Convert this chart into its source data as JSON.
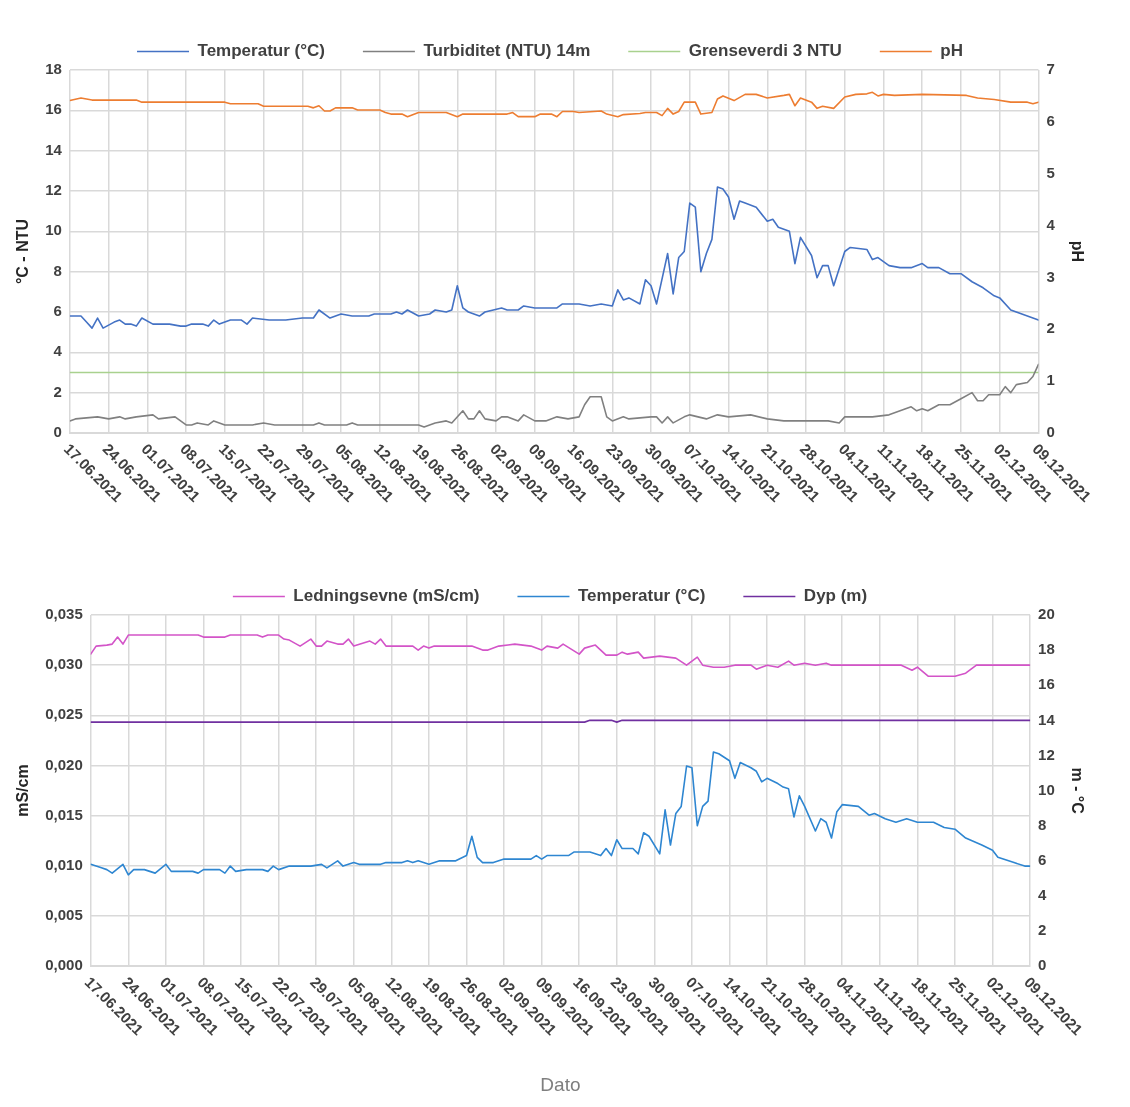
{
  "chart_data": [
    {
      "type": "line",
      "ylabel": "°C - NTU",
      "y2label": "pH",
      "legend": "top",
      "grid": true,
      "xlim": [
        "2021-06-17",
        "2021-12-09"
      ],
      "xticks": [
        {
          "value": "2021-06-17",
          "label": "17.06.2021"
        },
        {
          "value": "2021-06-24",
          "label": "24.06.2021"
        },
        {
          "value": "2021-07-01",
          "label": "01.07.2021"
        },
        {
          "value": "2021-07-08",
          "label": "08.07.2021"
        },
        {
          "value": "2021-07-15",
          "label": "15.07.2021"
        },
        {
          "value": "2021-07-22",
          "label": "22.07.2021"
        },
        {
          "value": "2021-07-29",
          "label": "29.07.2021"
        },
        {
          "value": "2021-08-05",
          "label": "05.08.2021"
        },
        {
          "value": "2021-08-12",
          "label": "12.08.2021"
        },
        {
          "value": "2021-08-19",
          "label": "19.08.2021"
        },
        {
          "value": "2021-08-26",
          "label": "26.08.2021"
        },
        {
          "value": "2021-09-02",
          "label": "02.09.2021"
        },
        {
          "value": "2021-09-09",
          "label": "09.09.2021"
        },
        {
          "value": "2021-09-16",
          "label": "16.09.2021"
        },
        {
          "value": "2021-09-23",
          "label": "23.09.2021"
        },
        {
          "value": "2021-09-30",
          "label": "30.09.2021"
        },
        {
          "value": "2021-10-07",
          "label": "07.10.2021"
        },
        {
          "value": "2021-10-14",
          "label": "14.10.2021"
        },
        {
          "value": "2021-10-21",
          "label": "21.10.2021"
        },
        {
          "value": "2021-10-28",
          "label": "28.10.2021"
        },
        {
          "value": "2021-11-04",
          "label": "04.11.2021"
        },
        {
          "value": "2021-11-11",
          "label": "11.11.2021"
        },
        {
          "value": "2021-11-18",
          "label": "18.11.2021"
        },
        {
          "value": "2021-11-25",
          "label": "25.11.2021"
        },
        {
          "value": "2021-12-02",
          "label": "02.12.2021"
        },
        {
          "value": "2021-12-09",
          "label": "09.12.2021"
        }
      ],
      "ylim": [
        0,
        18
      ],
      "yticks": [
        0,
        2,
        4,
        6,
        8,
        10,
        12,
        14,
        16,
        18
      ],
      "y2lim": [
        0,
        7
      ],
      "y2ticks": [
        0,
        1,
        2,
        3,
        4,
        5,
        6,
        7
      ],
      "series": [
        {
          "name": "Temperatur (°C)",
          "color": "#4472c4",
          "x": [
            "2021-06-17",
            "2021-06-19",
            "2021-06-20",
            "2021-06-21",
            "2021-06-22",
            "2021-06-23",
            "2021-06-25",
            "2021-06-26",
            "2021-06-27",
            "2021-06-28",
            "2021-06-29",
            "2021-06-30",
            "2021-07-02",
            "2021-07-03",
            "2021-07-05",
            "2021-07-07",
            "2021-07-08",
            "2021-07-09",
            "2021-07-11",
            "2021-07-12",
            "2021-07-13",
            "2021-07-14",
            "2021-07-16",
            "2021-07-18",
            "2021-07-19",
            "2021-07-20",
            "2021-07-23",
            "2021-07-26",
            "2021-07-29",
            "2021-07-31",
            "2021-08-01",
            "2021-08-03",
            "2021-08-05",
            "2021-08-07",
            "2021-08-10",
            "2021-08-11",
            "2021-08-14",
            "2021-08-15",
            "2021-08-16",
            "2021-08-17",
            "2021-08-19",
            "2021-08-21",
            "2021-08-22",
            "2021-08-24",
            "2021-08-25",
            "2021-08-26",
            "2021-08-27",
            "2021-08-28",
            "2021-08-30",
            "2021-08-31",
            "2021-09-03",
            "2021-09-04",
            "2021-09-06",
            "2021-09-07",
            "2021-09-09",
            "2021-09-11",
            "2021-09-13",
            "2021-09-14",
            "2021-09-16",
            "2021-09-17",
            "2021-09-19",
            "2021-09-21",
            "2021-09-23",
            "2021-09-24",
            "2021-09-25",
            "2021-09-26",
            "2021-09-28",
            "2021-09-29",
            "2021-09-30",
            "2021-10-01",
            "2021-10-03",
            "2021-10-04",
            "2021-10-05",
            "2021-10-06",
            "2021-10-07",
            "2021-10-08",
            "2021-10-09",
            "2021-10-10",
            "2021-10-11",
            "2021-10-12",
            "2021-10-13",
            "2021-10-14",
            "2021-10-15",
            "2021-10-16",
            "2021-10-17",
            "2021-10-19",
            "2021-10-21",
            "2021-10-22",
            "2021-10-23",
            "2021-10-25",
            "2021-10-26",
            "2021-10-27",
            "2021-10-29",
            "2021-10-30",
            "2021-10-31",
            "2021-11-01",
            "2021-11-02",
            "2021-11-04",
            "2021-11-05",
            "2021-11-08",
            "2021-11-09",
            "2021-11-10",
            "2021-11-12",
            "2021-11-14",
            "2021-11-16",
            "2021-11-18",
            "2021-11-19",
            "2021-11-21",
            "2021-11-23",
            "2021-11-25",
            "2021-11-27",
            "2021-11-29",
            "2021-12-01",
            "2021-12-02",
            "2021-12-04",
            "2021-12-06",
            "2021-12-08",
            "2021-12-09"
          ],
          "values": [
            5.8,
            5.8,
            5.5,
            5.2,
            5.7,
            5.2,
            5.5,
            5.6,
            5.4,
            5.4,
            5.3,
            5.7,
            5.4,
            5.4,
            5.4,
            5.3,
            5.3,
            5.4,
            5.4,
            5.3,
            5.6,
            5.4,
            5.6,
            5.6,
            5.4,
            5.7,
            5.6,
            5.6,
            5.7,
            5.7,
            6.1,
            5.7,
            5.9,
            5.8,
            5.8,
            5.9,
            5.9,
            6.0,
            5.9,
            6.1,
            5.8,
            5.9,
            6.1,
            6.0,
            6.1,
            7.3,
            6.2,
            6.0,
            5.8,
            6.0,
            6.2,
            6.1,
            6.1,
            6.3,
            6.2,
            6.2,
            6.2,
            6.4,
            6.4,
            6.4,
            6.3,
            6.4,
            6.3,
            7.1,
            6.6,
            6.7,
            6.4,
            7.6,
            7.3,
            6.4,
            8.9,
            6.9,
            8.7,
            9.0,
            11.4,
            11.2,
            8.0,
            8.9,
            9.6,
            12.2,
            12.1,
            11.7,
            10.6,
            11.5,
            11.4,
            11.2,
            10.5,
            10.6,
            10.2,
            10.0,
            8.4,
            9.7,
            8.8,
            7.7,
            8.3,
            8.3,
            7.3,
            9.0,
            9.2,
            9.1,
            8.6,
            8.7,
            8.3,
            8.2,
            8.2,
            8.4,
            8.2,
            8.2,
            7.9,
            7.9,
            7.5,
            7.2,
            6.8,
            6.7,
            6.1,
            5.9,
            5.7,
            5.6
          ]
        },
        {
          "name": "Turbiditet (NTU) 14m",
          "color": "#808080",
          "x": [
            "2021-06-17",
            "2021-06-18",
            "2021-06-22",
            "2021-06-24",
            "2021-06-26",
            "2021-06-27",
            "2021-06-29",
            "2021-07-02",
            "2021-07-03",
            "2021-07-06",
            "2021-07-08",
            "2021-07-09",
            "2021-07-10",
            "2021-07-12",
            "2021-07-13",
            "2021-07-15",
            "2021-07-20",
            "2021-07-22",
            "2021-07-24",
            "2021-07-31",
            "2021-08-01",
            "2021-08-02",
            "2021-08-06",
            "2021-08-07",
            "2021-08-08",
            "2021-08-19",
            "2021-08-20",
            "2021-08-21",
            "2021-08-22",
            "2021-08-24",
            "2021-08-25",
            "2021-08-27",
            "2021-08-28",
            "2021-08-29",
            "2021-08-30",
            "2021-08-31",
            "2021-09-02",
            "2021-09-03",
            "2021-09-04",
            "2021-09-06",
            "2021-09-07",
            "2021-09-09",
            "2021-09-11",
            "2021-09-13",
            "2021-09-15",
            "2021-09-17",
            "2021-09-18",
            "2021-09-19",
            "2021-09-21",
            "2021-09-22",
            "2021-09-23",
            "2021-09-25",
            "2021-09-26",
            "2021-09-30",
            "2021-10-01",
            "2021-10-02",
            "2021-10-03",
            "2021-10-04",
            "2021-10-06",
            "2021-10-07",
            "2021-10-10",
            "2021-10-12",
            "2021-10-14",
            "2021-10-18",
            "2021-10-21",
            "2021-10-24",
            "2021-10-29",
            "2021-11-01",
            "2021-11-03",
            "2021-11-04",
            "2021-11-07",
            "2021-11-09",
            "2021-11-12",
            "2021-11-14",
            "2021-11-16",
            "2021-11-17",
            "2021-11-18",
            "2021-11-19",
            "2021-11-21",
            "2021-11-23",
            "2021-11-25",
            "2021-11-27",
            "2021-11-28",
            "2021-11-29",
            "2021-11-30",
            "2021-12-02",
            "2021-12-03",
            "2021-12-04",
            "2021-12-05",
            "2021-12-07",
            "2021-12-08",
            "2021-12-09"
          ],
          "values": [
            0.6,
            0.7,
            0.8,
            0.7,
            0.8,
            0.7,
            0.8,
            0.9,
            0.7,
            0.8,
            0.4,
            0.4,
            0.5,
            0.4,
            0.6,
            0.4,
            0.4,
            0.5,
            0.4,
            0.4,
            0.5,
            0.4,
            0.4,
            0.5,
            0.4,
            0.4,
            0.3,
            0.4,
            0.5,
            0.6,
            0.5,
            1.1,
            0.7,
            0.7,
            1.1,
            0.7,
            0.6,
            0.8,
            0.8,
            0.6,
            0.9,
            0.6,
            0.6,
            0.8,
            0.7,
            0.8,
            1.4,
            1.8,
            1.8,
            0.8,
            0.6,
            0.8,
            0.7,
            0.8,
            0.8,
            0.5,
            0.8,
            0.5,
            0.8,
            0.9,
            0.7,
            0.9,
            0.8,
            0.9,
            0.7,
            0.6,
            0.6,
            0.6,
            0.5,
            0.8,
            0.8,
            0.8,
            0.9,
            1.1,
            1.3,
            1.1,
            1.2,
            1.1,
            1.4,
            1.4,
            1.7,
            2.0,
            1.6,
            1.6,
            1.9,
            1.9,
            2.3,
            2.0,
            2.4,
            2.5,
            2.8,
            3.4
          ]
        },
        {
          "name": "Grenseverdi 3 NTU",
          "color": "#a9d18e",
          "x": [
            "2021-06-17",
            "2021-12-09"
          ],
          "values": [
            3,
            3
          ]
        },
        {
          "name": "pH",
          "color": "#ed7d31",
          "axis": "y2",
          "x": [
            "2021-06-17",
            "2021-06-19",
            "2021-06-21",
            "2021-06-29",
            "2021-06-30",
            "2021-07-15",
            "2021-07-16",
            "2021-07-21",
            "2021-07-22",
            "2021-07-30",
            "2021-07-31",
            "2021-08-01",
            "2021-08-02",
            "2021-08-03",
            "2021-08-04",
            "2021-08-07",
            "2021-08-08",
            "2021-08-12",
            "2021-08-13",
            "2021-08-14",
            "2021-08-16",
            "2021-08-17",
            "2021-08-19",
            "2021-08-24",
            "2021-08-26",
            "2021-08-27",
            "2021-09-04",
            "2021-09-05",
            "2021-09-06",
            "2021-09-09",
            "2021-09-10",
            "2021-09-12",
            "2021-09-13",
            "2021-09-14",
            "2021-09-16",
            "2021-09-17",
            "2021-09-21",
            "2021-09-22",
            "2021-09-24",
            "2021-09-25",
            "2021-09-28",
            "2021-09-29",
            "2021-10-01",
            "2021-10-02",
            "2021-10-03",
            "2021-10-04",
            "2021-10-05",
            "2021-10-06",
            "2021-10-08",
            "2021-10-09",
            "2021-10-11",
            "2021-10-12",
            "2021-10-13",
            "2021-10-15",
            "2021-10-17",
            "2021-10-19",
            "2021-10-21",
            "2021-10-24",
            "2021-10-25",
            "2021-10-26",
            "2021-10-27",
            "2021-10-29",
            "2021-10-30",
            "2021-10-31",
            "2021-11-02",
            "2021-11-04",
            "2021-11-06",
            "2021-11-08",
            "2021-11-09",
            "2021-11-10",
            "2021-11-11",
            "2021-11-13",
            "2021-11-18",
            "2021-11-26",
            "2021-11-28",
            "2021-12-01",
            "2021-12-04",
            "2021-12-07",
            "2021-12-08",
            "2021-12-09"
          ],
          "values": [
            6.41,
            6.46,
            6.42,
            6.42,
            6.38,
            6.38,
            6.35,
            6.35,
            6.3,
            6.3,
            6.27,
            6.31,
            6.21,
            6.21,
            6.27,
            6.27,
            6.23,
            6.23,
            6.18,
            6.15,
            6.15,
            6.1,
            6.18,
            6.18,
            6.1,
            6.15,
            6.15,
            6.18,
            6.1,
            6.1,
            6.15,
            6.15,
            6.1,
            6.2,
            6.2,
            6.18,
            6.21,
            6.15,
            6.1,
            6.14,
            6.16,
            6.18,
            6.18,
            6.12,
            6.26,
            6.15,
            6.2,
            6.38,
            6.38,
            6.15,
            6.18,
            6.44,
            6.5,
            6.41,
            6.53,
            6.53,
            6.46,
            6.51,
            6.53,
            6.31,
            6.46,
            6.38,
            6.26,
            6.3,
            6.26,
            6.48,
            6.53,
            6.54,
            6.57,
            6.5,
            6.53,
            6.51,
            6.53,
            6.51,
            6.46,
            6.43,
            6.38,
            6.38,
            6.35,
            6.38
          ]
        }
      ]
    },
    {
      "type": "line",
      "xlabel": "Dato",
      "ylabel": "mS/cm",
      "y2label": "m - °C",
      "legend": "top",
      "grid": true,
      "xlim": [
        "2021-06-17",
        "2021-12-09"
      ],
      "xticks": [
        {
          "value": "2021-06-17",
          "label": "17.06.2021"
        },
        {
          "value": "2021-06-24",
          "label": "24.06.2021"
        },
        {
          "value": "2021-07-01",
          "label": "01.07.2021"
        },
        {
          "value": "2021-07-08",
          "label": "08.07.2021"
        },
        {
          "value": "2021-07-15",
          "label": "15.07.2021"
        },
        {
          "value": "2021-07-22",
          "label": "22.07.2021"
        },
        {
          "value": "2021-07-29",
          "label": "29.07.2021"
        },
        {
          "value": "2021-08-05",
          "label": "05.08.2021"
        },
        {
          "value": "2021-08-12",
          "label": "12.08.2021"
        },
        {
          "value": "2021-08-19",
          "label": "19.08.2021"
        },
        {
          "value": "2021-08-26",
          "label": "26.08.2021"
        },
        {
          "value": "2021-09-02",
          "label": "02.09.2021"
        },
        {
          "value": "2021-09-09",
          "label": "09.09.2021"
        },
        {
          "value": "2021-09-16",
          "label": "16.09.2021"
        },
        {
          "value": "2021-09-23",
          "label": "23.09.2021"
        },
        {
          "value": "2021-09-30",
          "label": "30.09.2021"
        },
        {
          "value": "2021-10-07",
          "label": "07.10.2021"
        },
        {
          "value": "2021-10-14",
          "label": "14.10.2021"
        },
        {
          "value": "2021-10-21",
          "label": "21.10.2021"
        },
        {
          "value": "2021-10-28",
          "label": "28.10.2021"
        },
        {
          "value": "2021-11-04",
          "label": "04.11.2021"
        },
        {
          "value": "2021-11-11",
          "label": "11.11.2021"
        },
        {
          "value": "2021-11-18",
          "label": "18.11.2021"
        },
        {
          "value": "2021-11-25",
          "label": "25.11.2021"
        },
        {
          "value": "2021-12-02",
          "label": "02.12.2021"
        },
        {
          "value": "2021-12-09",
          "label": "09.12.2021"
        }
      ],
      "ylim": [
        0,
        0.035
      ],
      "yticks": [
        {
          "value": 0,
          "label": "0,000"
        },
        {
          "value": 0.005,
          "label": "0,005"
        },
        {
          "value": 0.01,
          "label": "0,010"
        },
        {
          "value": 0.015,
          "label": "0,015"
        },
        {
          "value": 0.02,
          "label": "0,020"
        },
        {
          "value": 0.025,
          "label": "0,025"
        },
        {
          "value": 0.03,
          "label": "0,030"
        },
        {
          "value": 0.035,
          "label": "0,035"
        }
      ],
      "y2lim": [
        0,
        20
      ],
      "y2ticks": [
        0,
        2,
        4,
        6,
        8,
        10,
        12,
        14,
        16,
        18,
        20
      ],
      "series": [
        {
          "name": "Ledningsevne (mS/cm)",
          "color": "#d354c8",
          "x": [
            "2021-06-17",
            "2021-06-18",
            "2021-06-20",
            "2021-06-21",
            "2021-06-22",
            "2021-06-23",
            "2021-06-24",
            "2021-07-07",
            "2021-07-08",
            "2021-07-12",
            "2021-07-13",
            "2021-07-18",
            "2021-07-19",
            "2021-07-20",
            "2021-07-22",
            "2021-07-23",
            "2021-07-24",
            "2021-07-26",
            "2021-07-28",
            "2021-07-29",
            "2021-07-30",
            "2021-07-31",
            "2021-08-02",
            "2021-08-03",
            "2021-08-04",
            "2021-08-05",
            "2021-08-08",
            "2021-08-09",
            "2021-08-10",
            "2021-08-11",
            "2021-08-16",
            "2021-08-17",
            "2021-08-18",
            "2021-08-19",
            "2021-08-20",
            "2021-08-27",
            "2021-08-29",
            "2021-08-30",
            "2021-09-01",
            "2021-09-04",
            "2021-09-07",
            "2021-09-09",
            "2021-09-10",
            "2021-09-12",
            "2021-09-13",
            "2021-09-16",
            "2021-09-17",
            "2021-09-19",
            "2021-09-21",
            "2021-09-23",
            "2021-09-24",
            "2021-09-25",
            "2021-09-27",
            "2021-09-28",
            "2021-10-01",
            "2021-10-04",
            "2021-10-06",
            "2021-10-08",
            "2021-10-09",
            "2021-10-11",
            "2021-10-13",
            "2021-10-15",
            "2021-10-18",
            "2021-10-19",
            "2021-10-21",
            "2021-10-23",
            "2021-10-25",
            "2021-10-26",
            "2021-10-28",
            "2021-10-30",
            "2021-11-01",
            "2021-11-02",
            "2021-11-15",
            "2021-11-17",
            "2021-11-18",
            "2021-11-20",
            "2021-11-25",
            "2021-11-27",
            "2021-11-29",
            "2021-12-09"
          ],
          "values": [
            0.0311,
            0.0319,
            0.032,
            0.0321,
            0.0328,
            0.0321,
            0.033,
            0.033,
            0.0328,
            0.0328,
            0.033,
            0.033,
            0.0328,
            0.033,
            0.033,
            0.0326,
            0.0325,
            0.0319,
            0.0326,
            0.0319,
            0.0319,
            0.0324,
            0.0321,
            0.0321,
            0.0326,
            0.0319,
            0.0324,
            0.0321,
            0.0326,
            0.0319,
            0.0319,
            0.0315,
            0.0319,
            0.0317,
            0.0319,
            0.0319,
            0.0315,
            0.0315,
            0.0319,
            0.0321,
            0.0319,
            0.0315,
            0.0319,
            0.0317,
            0.0321,
            0.0311,
            0.0317,
            0.032,
            0.031,
            0.031,
            0.0313,
            0.0311,
            0.0313,
            0.0307,
            0.0309,
            0.0307,
            0.03,
            0.0308,
            0.03,
            0.0298,
            0.0298,
            0.03,
            0.03,
            0.0296,
            0.03,
            0.0298,
            0.0304,
            0.03,
            0.0302,
            0.03,
            0.0302,
            0.03,
            0.03,
            0.0295,
            0.0298,
            0.0289,
            0.0289,
            0.0292,
            0.03,
            0.03
          ]
        },
        {
          "name": "Temperatur (°C)",
          "color": "#2e86d1",
          "axis": "y2",
          "x": [
            "2021-06-17",
            "2021-06-19",
            "2021-06-20",
            "2021-06-21",
            "2021-06-23",
            "2021-06-24",
            "2021-06-25",
            "2021-06-26",
            "2021-06-27",
            "2021-06-29",
            "2021-07-01",
            "2021-07-02",
            "2021-07-06",
            "2021-07-07",
            "2021-07-08",
            "2021-07-11",
            "2021-07-12",
            "2021-07-13",
            "2021-07-14",
            "2021-07-16",
            "2021-07-19",
            "2021-07-20",
            "2021-07-21",
            "2021-07-22",
            "2021-07-24",
            "2021-07-26",
            "2021-07-28",
            "2021-07-30",
            "2021-07-31",
            "2021-08-02",
            "2021-08-03",
            "2021-08-05",
            "2021-08-06",
            "2021-08-10",
            "2021-08-11",
            "2021-08-14",
            "2021-08-15",
            "2021-08-16",
            "2021-08-17",
            "2021-08-19",
            "2021-08-21",
            "2021-08-24",
            "2021-08-26",
            "2021-08-27",
            "2021-08-28",
            "2021-08-29",
            "2021-08-31",
            "2021-09-02",
            "2021-09-07",
            "2021-09-08",
            "2021-09-09",
            "2021-09-10",
            "2021-09-12",
            "2021-09-14",
            "2021-09-15",
            "2021-09-16",
            "2021-09-18",
            "2021-09-20",
            "2021-09-21",
            "2021-09-22",
            "2021-09-23",
            "2021-09-24",
            "2021-09-26",
            "2021-09-27",
            "2021-09-28",
            "2021-09-29",
            "2021-10-01",
            "2021-10-02",
            "2021-10-03",
            "2021-10-04",
            "2021-10-05",
            "2021-10-06",
            "2021-10-07",
            "2021-10-08",
            "2021-10-09",
            "2021-10-10",
            "2021-10-11",
            "2021-10-12",
            "2021-10-14",
            "2021-10-15",
            "2021-10-16",
            "2021-10-18",
            "2021-10-19",
            "2021-10-20",
            "2021-10-21",
            "2021-10-23",
            "2021-10-24",
            "2021-10-25",
            "2021-10-26",
            "2021-10-27",
            "2021-10-28",
            "2021-10-30",
            "2021-10-31",
            "2021-11-01",
            "2021-11-02",
            "2021-11-03",
            "2021-11-04",
            "2021-11-07",
            "2021-11-09",
            "2021-11-10",
            "2021-11-12",
            "2021-11-14",
            "2021-11-16",
            "2021-11-18",
            "2021-11-21",
            "2021-11-23",
            "2021-11-25",
            "2021-11-27",
            "2021-11-30",
            "2021-12-02",
            "2021-12-03",
            "2021-12-06",
            "2021-12-08",
            "2021-12-09"
          ],
          "values": [
            5.8,
            5.6,
            5.5,
            5.3,
            5.8,
            5.2,
            5.5,
            5.5,
            5.5,
            5.3,
            5.8,
            5.4,
            5.4,
            5.3,
            5.5,
            5.5,
            5.3,
            5.7,
            5.4,
            5.5,
            5.5,
            5.4,
            5.7,
            5.5,
            5.7,
            5.7,
            5.7,
            5.8,
            5.6,
            6.0,
            5.7,
            5.9,
            5.8,
            5.8,
            5.9,
            5.9,
            6.0,
            5.9,
            6.0,
            5.8,
            6.0,
            6.0,
            6.3,
            7.4,
            6.2,
            5.9,
            5.9,
            6.1,
            6.1,
            6.3,
            6.1,
            6.3,
            6.3,
            6.3,
            6.5,
            6.5,
            6.5,
            6.3,
            6.7,
            6.3,
            7.2,
            6.7,
            6.7,
            6.4,
            7.6,
            7.4,
            6.4,
            8.9,
            6.9,
            8.7,
            9.1,
            11.4,
            11.3,
            8.0,
            9.1,
            9.4,
            12.2,
            12.1,
            11.7,
            10.7,
            11.6,
            11.3,
            11.1,
            10.5,
            10.7,
            10.4,
            10.2,
            10.1,
            8.5,
            9.7,
            9.1,
            7.7,
            8.4,
            8.2,
            7.3,
            8.8,
            9.2,
            9.1,
            8.6,
            8.7,
            8.4,
            8.2,
            8.4,
            8.2,
            8.2,
            7.9,
            7.8,
            7.3,
            6.9,
            6.6,
            6.2,
            5.9,
            5.7,
            5.7
          ]
        },
        {
          "name": "Dyp (m)",
          "color": "#7030a0",
          "axis": "y2",
          "x": [
            "2021-06-17",
            "2021-09-17",
            "2021-09-18",
            "2021-09-22",
            "2021-09-23",
            "2021-09-24",
            "2021-12-09"
          ],
          "values": [
            13.9,
            13.9,
            14.0,
            14.0,
            13.9,
            14.0,
            14.0
          ]
        }
      ]
    }
  ]
}
